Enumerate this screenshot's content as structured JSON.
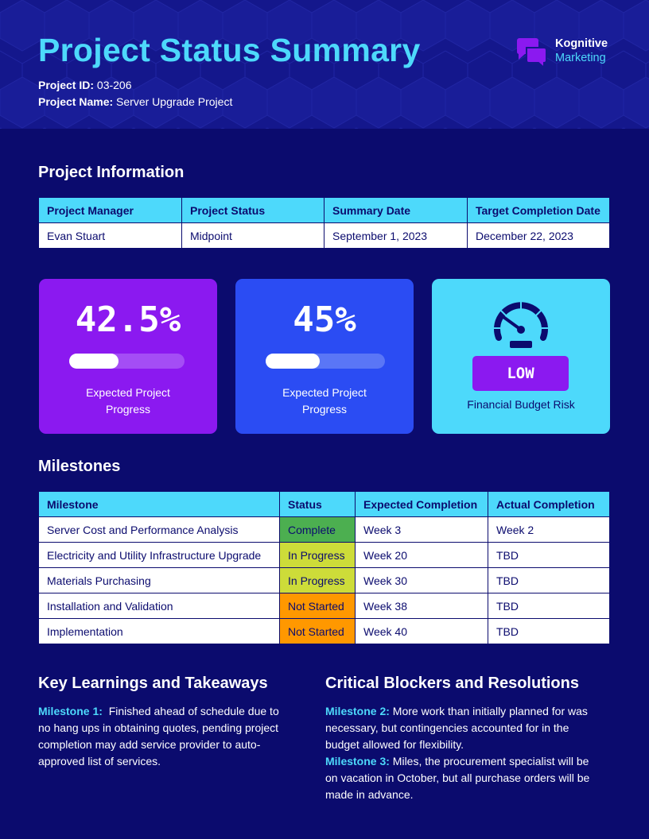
{
  "header": {
    "title": "Project Status Summary",
    "project_id_label": "Project ID:",
    "project_id": "03-206",
    "project_name_label": "Project Name:",
    "project_name": "Server Upgrade Project"
  },
  "logo": {
    "line1": "Kognitive",
    "line2": "Marketing",
    "icon": "chat-bubbles-icon"
  },
  "project_info": {
    "heading": "Project Information",
    "columns": [
      "Project Manager",
      "Project Status",
      "Summary Date",
      "Target Completion Date"
    ],
    "row": [
      "Evan Stuart",
      "Midpoint",
      "September 1, 2023",
      "December 22, 2023"
    ]
  },
  "cards": [
    {
      "value": "42.5%",
      "progress": 0.425,
      "label": "Expected Project Progress",
      "bg": "#8b19f0",
      "track": "#a44df5"
    },
    {
      "value": "45%",
      "progress": 0.45,
      "label": "Expected Project Progress",
      "bg": "#2b4cf3",
      "track": "#5a76f6"
    },
    {
      "risk": "LOW",
      "label": "Financial Budget Risk",
      "bg": "#4dd9fb",
      "icon": "speedometer-icon"
    }
  ],
  "milestones": {
    "heading": "Milestones",
    "columns": [
      "Milestone",
      "Status",
      "Expected Completion",
      "Actual Completion"
    ],
    "rows": [
      {
        "name": "Server Cost and Performance Analysis",
        "status": "Complete",
        "expected": "Week 3",
        "actual": "Week 2"
      },
      {
        "name": "Electricity and Utility Infrastructure Upgrade",
        "status": "In Progress",
        "expected": "Week 20",
        "actual": "TBD"
      },
      {
        "name": "Materials Purchasing",
        "status": "In Progress",
        "expected": "Week 30",
        "actual": "TBD"
      },
      {
        "name": "Installation and Validation",
        "status": "Not Started",
        "expected": "Week 38",
        "actual": "TBD"
      },
      {
        "name": "Implementation",
        "status": "Not Started",
        "expected": "Week 40",
        "actual": "TBD"
      }
    ],
    "status_colors": {
      "Complete": "#4caf50",
      "In Progress": "#cddc39",
      "Not Started": "#ff9800"
    }
  },
  "learnings": {
    "heading": "Key Learnings and Takeaways",
    "items": [
      {
        "milestone": "Milestone 1:",
        "text": "Finished ahead of schedule due to no hang ups in obtaining quotes, pending project completion may add service provider to auto-approved list of services."
      }
    ]
  },
  "blockers": {
    "heading": "Critical Blockers and Resolutions",
    "items": [
      {
        "milestone": "Milestone 2:",
        "text": "More work than initially planned for was necessary, but contingencies accounted for in the budget allowed for flexibility."
      },
      {
        "milestone": "Milestone 3:",
        "text": "Miles, the procurement specialist will be on vacation in October, but all purchase orders will be made in advance."
      }
    ]
  },
  "colors": {
    "background": "#0b0b6e",
    "accent": "#4dd9fb",
    "header_bg": "#14178c"
  }
}
